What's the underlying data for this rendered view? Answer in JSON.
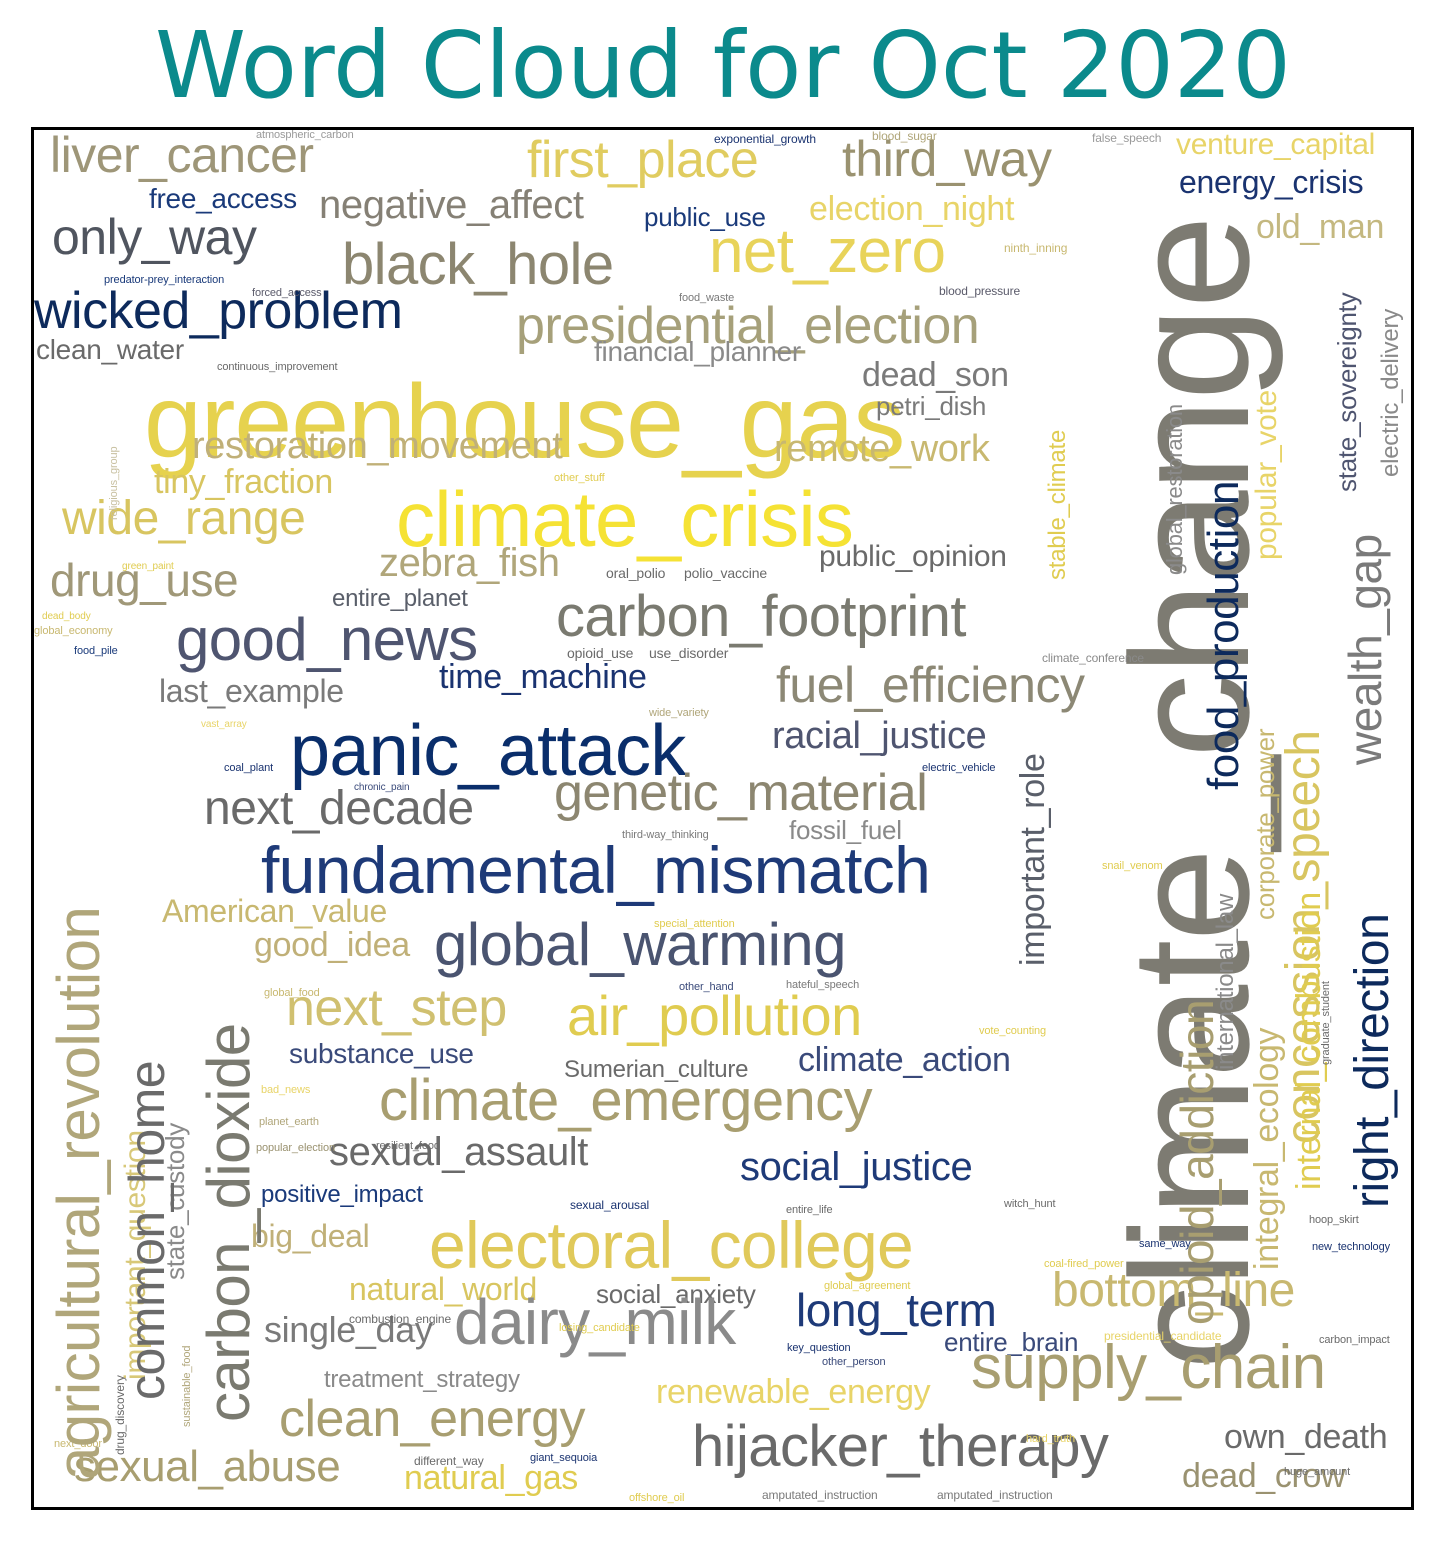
{
  "title": "Word Cloud for Oct 2020",
  "words": [
    {
      "text": "climate_change",
      "color": "#7d7b72"
    },
    {
      "text": "greenhouse_gas",
      "color": "#e6d24e"
    },
    {
      "text": "climate_crisis",
      "color": "#f5e234"
    },
    {
      "text": "panic_attack",
      "color": "#0a2e6b"
    },
    {
      "text": "fundamental_mismatch",
      "color": "#1e3a78"
    },
    {
      "text": "global_warming",
      "color": "#4a5470"
    },
    {
      "text": "electoral_college",
      "color": "#e0c95a"
    },
    {
      "text": "carbon_footprint",
      "color": "#7a7a70"
    },
    {
      "text": "net_zero",
      "color": "#e8d35a"
    },
    {
      "text": "presidential_election",
      "color": "#a6a07a"
    },
    {
      "text": "black_hole",
      "color": "#8c8670"
    },
    {
      "text": "wicked_problem",
      "color": "#0d2a5c"
    },
    {
      "text": "first_place",
      "color": "#e0cc60"
    },
    {
      "text": "third_way",
      "color": "#9a9270"
    },
    {
      "text": "liver_cancer",
      "color": "#9e9678"
    },
    {
      "text": "only_way",
      "color": "#50555f"
    },
    {
      "text": "negative_affect",
      "color": "#858075"
    },
    {
      "text": "free_access",
      "color": "#1a3a7a"
    },
    {
      "text": "public_use",
      "color": "#1a3a7a"
    },
    {
      "text": "election_night",
      "color": "#e8d468"
    },
    {
      "text": "energy_crisis",
      "color": "#1a3370"
    },
    {
      "text": "venture_capital",
      "color": "#e8d468"
    },
    {
      "text": "old_man",
      "color": "#c4b880"
    },
    {
      "text": "good_news",
      "color": "#4f5570"
    },
    {
      "text": "wide_range",
      "color": "#d8c560"
    },
    {
      "text": "restoration_movement",
      "color": "#c0b078"
    },
    {
      "text": "remote_work",
      "color": "#c8b870"
    },
    {
      "text": "tiny_fraction",
      "color": "#d8c560"
    },
    {
      "text": "drug_use",
      "color": "#a09878"
    },
    {
      "text": "zebra_fish",
      "color": "#b0a67a"
    },
    {
      "text": "public_opinion",
      "color": "#6a6a6a"
    },
    {
      "text": "entire_planet",
      "color": "#5a5f6a"
    },
    {
      "text": "dead_son",
      "color": "#7a7a7a"
    },
    {
      "text": "petri_dish",
      "color": "#7a7a7a"
    },
    {
      "text": "financial_planner",
      "color": "#8a8a8a"
    },
    {
      "text": "clean_water",
      "color": "#6a6a6a"
    },
    {
      "text": "fuel_efficiency",
      "color": "#8c8875"
    },
    {
      "text": "racial_justice",
      "color": "#4f5570"
    },
    {
      "text": "time_machine",
      "color": "#1a3370"
    },
    {
      "text": "last_example",
      "color": "#7a7a7a"
    },
    {
      "text": "genetic_material",
      "color": "#8c8670"
    },
    {
      "text": "next_decade",
      "color": "#6a6a6a"
    },
    {
      "text": "fossil_fuel",
      "color": "#8a8a8a"
    },
    {
      "text": "American_value",
      "color": "#c8b870"
    },
    {
      "text": "good_idea",
      "color": "#c0b078"
    },
    {
      "text": "next_step",
      "color": "#d0c070"
    },
    {
      "text": "air_pollution",
      "color": "#e0cc50"
    },
    {
      "text": "substance_use",
      "color": "#3a4a7a"
    },
    {
      "text": "Sumerian_culture",
      "color": "#6a6a6a"
    },
    {
      "text": "climate_action",
      "color": "#3a4a7a"
    },
    {
      "text": "climate_emergency",
      "color": "#a89e70"
    },
    {
      "text": "sexual_assault",
      "color": "#6a6a6a"
    },
    {
      "text": "social_justice",
      "color": "#1e3a78"
    },
    {
      "text": "positive_impact",
      "color": "#1a3a7a"
    },
    {
      "text": "big_deal",
      "color": "#c0b078"
    },
    {
      "text": "natural_world",
      "color": "#d8c560"
    },
    {
      "text": "social_anxiety",
      "color": "#6a6a6a"
    },
    {
      "text": "long_term",
      "color": "#1e3a78"
    },
    {
      "text": "bottom_line",
      "color": "#c8b870"
    },
    {
      "text": "dairy_milk",
      "color": "#8a8a8a"
    },
    {
      "text": "single_day",
      "color": "#7a7a7a"
    },
    {
      "text": "entire_brain",
      "color": "#3a4a7a"
    },
    {
      "text": "supply_chain",
      "color": "#a89e70"
    },
    {
      "text": "treatment_strategy",
      "color": "#8a8a8a"
    },
    {
      "text": "renewable_energy",
      "color": "#e8d468"
    },
    {
      "text": "clean_energy",
      "color": "#a89e70"
    },
    {
      "text": "hijacker_therapy",
      "color": "#6a6a6a"
    },
    {
      "text": "own_death",
      "color": "#6a6a6a"
    },
    {
      "text": "sexual_abuse",
      "color": "#a89e70"
    },
    {
      "text": "natural_gas",
      "color": "#e0cc50"
    },
    {
      "text": "dead_crow",
      "color": "#9a9270"
    },
    {
      "text": "atmospheric_carbon",
      "color": "#9a9a9a"
    },
    {
      "text": "exponential_growth",
      "color": "#1a3370"
    },
    {
      "text": "blood_sugar",
      "color": "#b0a67a"
    },
    {
      "text": "false_speech",
      "color": "#9a9a9a"
    },
    {
      "text": "ninth_inning",
      "color": "#c8b870"
    },
    {
      "text": "predator-prey_interaction",
      "color": "#1a3a7a"
    },
    {
      "text": "forced_access",
      "color": "#5a5a6a"
    },
    {
      "text": "food_waste",
      "color": "#7a7a7a"
    },
    {
      "text": "blood_pressure",
      "color": "#5a5a6a"
    },
    {
      "text": "continuous_improvement",
      "color": "#6a6a6a"
    },
    {
      "text": "other_stuff",
      "color": "#e0cc50"
    },
    {
      "text": "green_paint",
      "color": "#e0cc50"
    },
    {
      "text": "oral_polio",
      "color": "#6a6a6a"
    },
    {
      "text": "polio_vaccine",
      "color": "#6a6a6a"
    },
    {
      "text": "dead_body",
      "color": "#e0cc50"
    },
    {
      "text": "global_economy",
      "color": "#c8b870"
    },
    {
      "text": "food_pile",
      "color": "#1a3a7a"
    },
    {
      "text": "opioid_use",
      "color": "#6a6a6a"
    },
    {
      "text": "use_disorder",
      "color": "#6a6a6a"
    },
    {
      "text": "climate_conference",
      "color": "#8a8a8a"
    },
    {
      "text": "vast_array",
      "color": "#e8d468"
    },
    {
      "text": "wide_variety",
      "color": "#b0a67a"
    },
    {
      "text": "coal_plant",
      "color": "#1a3370"
    },
    {
      "text": "chronic_pain",
      "color": "#3a4a7a"
    },
    {
      "text": "electric_vehicle",
      "color": "#1a3370"
    },
    {
      "text": "third-way_thinking",
      "color": "#7a7a7a"
    },
    {
      "text": "snail_venom",
      "color": "#e0cc50"
    },
    {
      "text": "special_attention",
      "color": "#e0cc50"
    },
    {
      "text": "global_food",
      "color": "#c8b870"
    },
    {
      "text": "other_hand",
      "color": "#3a4a7a"
    },
    {
      "text": "hateful_speech",
      "color": "#7a7a7a"
    },
    {
      "text": "vote_counting",
      "color": "#e0cc50"
    },
    {
      "text": "bad_news",
      "color": "#e8d468"
    },
    {
      "text": "planet_earth",
      "color": "#b0a67a"
    },
    {
      "text": "popular_election",
      "color": "#9a9270"
    },
    {
      "text": "resilient_food",
      "color": "#6a6a6a"
    },
    {
      "text": "sexual_arousal",
      "color": "#1a3370"
    },
    {
      "text": "entire_life",
      "color": "#6a6a6a"
    },
    {
      "text": "witch_hunt",
      "color": "#6a6a6a"
    },
    {
      "text": "hoop_skirt",
      "color": "#6a6a6a"
    },
    {
      "text": "same_way",
      "color": "#1a3370"
    },
    {
      "text": "new_technology",
      "color": "#1a3370"
    },
    {
      "text": "coal-fired_power",
      "color": "#e0cc50"
    },
    {
      "text": "global_agreement",
      "color": "#e0cc50"
    },
    {
      "text": "combustion_engine",
      "color": "#6a6a6a"
    },
    {
      "text": "losing_candidate",
      "color": "#e0cc50"
    },
    {
      "text": "key_question",
      "color": "#1a3370"
    },
    {
      "text": "other_person",
      "color": "#3a4a7a"
    },
    {
      "text": "presidential_candidate",
      "color": "#e8d468"
    },
    {
      "text": "carbon_impact",
      "color": "#6a6a6a"
    },
    {
      "text": "next_door",
      "color": "#c8b870"
    },
    {
      "text": "different_way",
      "color": "#6a6a6a"
    },
    {
      "text": "giant_sequoia",
      "color": "#1a3370"
    },
    {
      "text": "offshore_oil",
      "color": "#e0cc50"
    },
    {
      "text": "amputated_instruction",
      "color": "#7a7a7a"
    },
    {
      "text": "amputated_instruction",
      "color": "#7a7a7a"
    },
    {
      "text": "hard_truth",
      "color": "#e8d468"
    },
    {
      "text": "huge_amount",
      "color": "#6a6a6a"
    },
    {
      "text": "agricultural_revolution",
      "color": "#b0a67a"
    },
    {
      "text": "important_question",
      "color": "#d8c878"
    },
    {
      "text": "state_custody",
      "color": "#8a8a8a"
    },
    {
      "text": "common_home",
      "color": "#6a6a6a"
    },
    {
      "text": "carbon_dioxide",
      "color": "#7a7a70"
    },
    {
      "text": "religious_group",
      "color": "#c8c0a0"
    },
    {
      "text": "drug_discovery",
      "color": "#6a6a6a"
    },
    {
      "text": "sustainable_food",
      "color": "#b0a67a"
    },
    {
      "text": "important_role",
      "color": "#5a5f6a"
    },
    {
      "text": "stable_climate",
      "color": "#e0cc50"
    },
    {
      "text": "opioid_addiction",
      "color": "#a89e70"
    },
    {
      "text": "global_restoration",
      "color": "#8a8a8a"
    },
    {
      "text": "food_production",
      "color": "#0d2a5c"
    },
    {
      "text": "international_law",
      "color": "#8a8a8a"
    },
    {
      "text": "popular_vote",
      "color": "#e8d468"
    },
    {
      "text": "corporate_power",
      "color": "#c8b870"
    },
    {
      "text": "integral_ecology",
      "color": "#c8b870"
    },
    {
      "text": "concession_speech",
      "color": "#d8c560"
    },
    {
      "text": "internal_combustion",
      "color": "#e0cc50"
    },
    {
      "text": "wealth_gap",
      "color": "#7a7a7a"
    },
    {
      "text": "state_sovereignty",
      "color": "#4f5570"
    },
    {
      "text": "electric_delivery",
      "color": "#8a8a8a"
    },
    {
      "text": "right_direction",
      "color": "#0d2a5c"
    },
    {
      "text": "graduate_student",
      "color": "#6a6a6a"
    }
  ]
}
